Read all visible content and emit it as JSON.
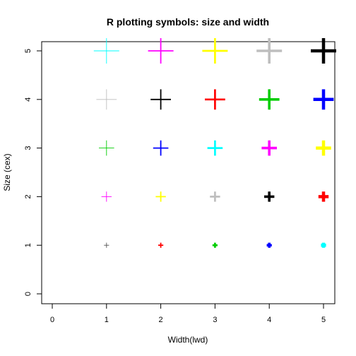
{
  "chart_data": {
    "type": "scatter",
    "title": "R plotting symbols: size and width",
    "xlabel": "Width(lwd)",
    "ylabel": "Size (cex)",
    "xlim": [
      0,
      5
    ],
    "ylim": [
      0,
      5
    ],
    "x_ticks": [
      "0",
      "1",
      "2",
      "3",
      "4",
      "5"
    ],
    "y_ticks": [
      "0",
      "1",
      "2",
      "3",
      "4",
      "5"
    ],
    "grid": false,
    "legend": "none",
    "marker": "plus",
    "points": [
      {
        "x": 1,
        "y": 1,
        "color": "#555555"
      },
      {
        "x": 2,
        "y": 1,
        "color": "#ff0000"
      },
      {
        "x": 3,
        "y": 1,
        "color": "#00cd00"
      },
      {
        "x": 4,
        "y": 1,
        "color": "#0000ff"
      },
      {
        "x": 5,
        "y": 1,
        "color": "#00ffff"
      },
      {
        "x": 1,
        "y": 2,
        "color": "#ff00ff"
      },
      {
        "x": 2,
        "y": 2,
        "color": "#ffff00"
      },
      {
        "x": 3,
        "y": 2,
        "color": "#bebebe"
      },
      {
        "x": 4,
        "y": 2,
        "color": "#000000"
      },
      {
        "x": 5,
        "y": 2,
        "color": "#ff0000"
      },
      {
        "x": 1,
        "y": 3,
        "color": "#00cd00"
      },
      {
        "x": 2,
        "y": 3,
        "color": "#0000ff"
      },
      {
        "x": 3,
        "y": 3,
        "color": "#00ffff"
      },
      {
        "x": 4,
        "y": 3,
        "color": "#ff00ff"
      },
      {
        "x": 5,
        "y": 3,
        "color": "#ffff00"
      },
      {
        "x": 1,
        "y": 4,
        "color": "#bebebe"
      },
      {
        "x": 2,
        "y": 4,
        "color": "#000000"
      },
      {
        "x": 3,
        "y": 4,
        "color": "#ff0000"
      },
      {
        "x": 4,
        "y": 4,
        "color": "#00cd00"
      },
      {
        "x": 5,
        "y": 4,
        "color": "#0000ff"
      },
      {
        "x": 1,
        "y": 5,
        "color": "#00ffff"
      },
      {
        "x": 2,
        "y": 5,
        "color": "#ff00ff"
      },
      {
        "x": 3,
        "y": 5,
        "color": "#ffff00"
      },
      {
        "x": 4,
        "y": 5,
        "color": "#bebebe"
      },
      {
        "x": 5,
        "y": 5,
        "color": "#000000"
      }
    ]
  }
}
